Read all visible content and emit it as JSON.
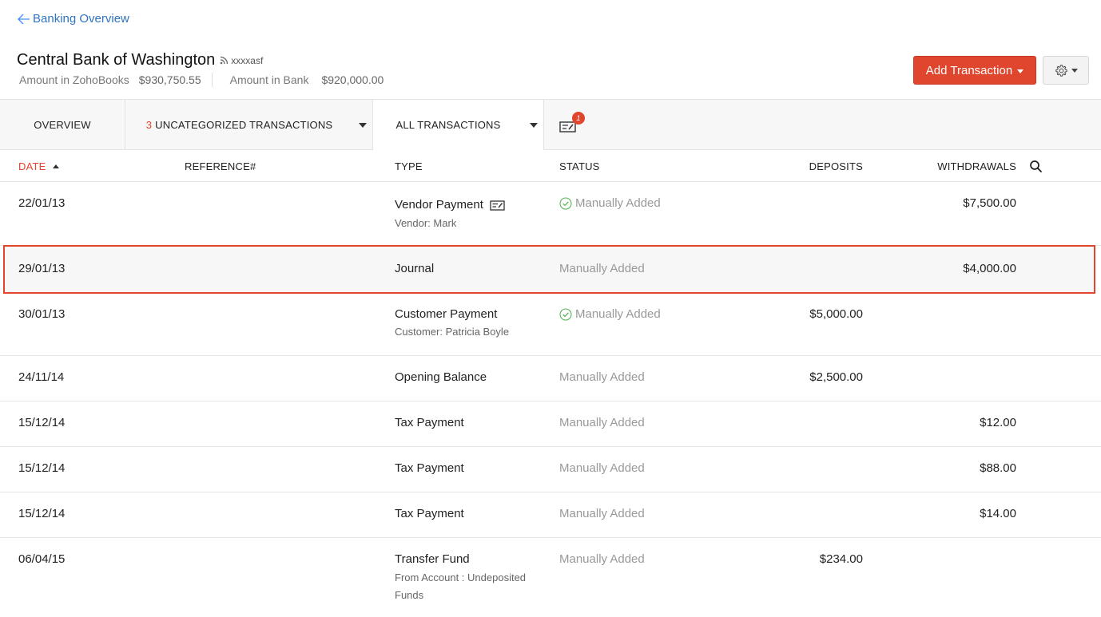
{
  "nav": {
    "back_label": "Banking Overview"
  },
  "account": {
    "name": "Central Bank of Washington",
    "feed_id": "xxxxasf",
    "amount_zoho_label": "Amount in ZohoBooks",
    "amount_zoho_value": "$930,750.55",
    "amount_bank_label": "Amount in Bank",
    "amount_bank_value": "$920,000.00"
  },
  "actions": {
    "add_transaction_label": "Add Transaction"
  },
  "tabs": {
    "overview": "OVERVIEW",
    "uncategorized_count": "3",
    "uncategorized_label": "UNCATEGORIZED TRANSACTIONS",
    "all_transactions": "ALL TRANSACTIONS",
    "cheque_badge": "1"
  },
  "table": {
    "headers": {
      "date": "DATE",
      "reference": "REFERENCE#",
      "type": "TYPE",
      "status": "STATUS",
      "deposits": "DEPOSITS",
      "withdrawals": "WITHDRAWALS"
    },
    "rows": [
      {
        "date": "22/01/13",
        "type": "Vendor Payment",
        "sub": "Vendor: Mark",
        "sub2": "",
        "status": "Manually Added",
        "deposit": "",
        "withdrawal": "$7,500.00"
      },
      {
        "date": "29/01/13",
        "type": "Journal",
        "sub": "",
        "sub2": "",
        "status": "Manually Added",
        "deposit": "",
        "withdrawal": "$4,000.00"
      },
      {
        "date": "30/01/13",
        "type": "Customer Payment",
        "sub": "Customer: Patricia Boyle",
        "sub2": "",
        "status": "Manually Added",
        "deposit": "$5,000.00",
        "withdrawal": ""
      },
      {
        "date": "24/11/14",
        "type": "Opening Balance",
        "sub": "",
        "sub2": "",
        "status": "Manually Added",
        "deposit": "$2,500.00",
        "withdrawal": ""
      },
      {
        "date": "15/12/14",
        "type": "Tax Payment",
        "sub": "",
        "sub2": "",
        "status": "Manually Added",
        "deposit": "",
        "withdrawal": "$12.00"
      },
      {
        "date": "15/12/14",
        "type": "Tax Payment",
        "sub": "",
        "sub2": "",
        "status": "Manually Added",
        "deposit": "",
        "withdrawal": "$88.00"
      },
      {
        "date": "15/12/14",
        "type": "Tax Payment",
        "sub": "",
        "sub2": "",
        "status": "Manually Added",
        "deposit": "",
        "withdrawal": "$14.00"
      },
      {
        "date": "06/04/15",
        "type": "Transfer Fund",
        "sub": "From Account : Undeposited",
        "sub2": "Funds",
        "status": "Manually Added",
        "deposit": "$234.00",
        "withdrawal": ""
      }
    ]
  },
  "colors": {
    "accent": "#e0452d",
    "link": "#408dfb",
    "check": "#5cb85c"
  }
}
